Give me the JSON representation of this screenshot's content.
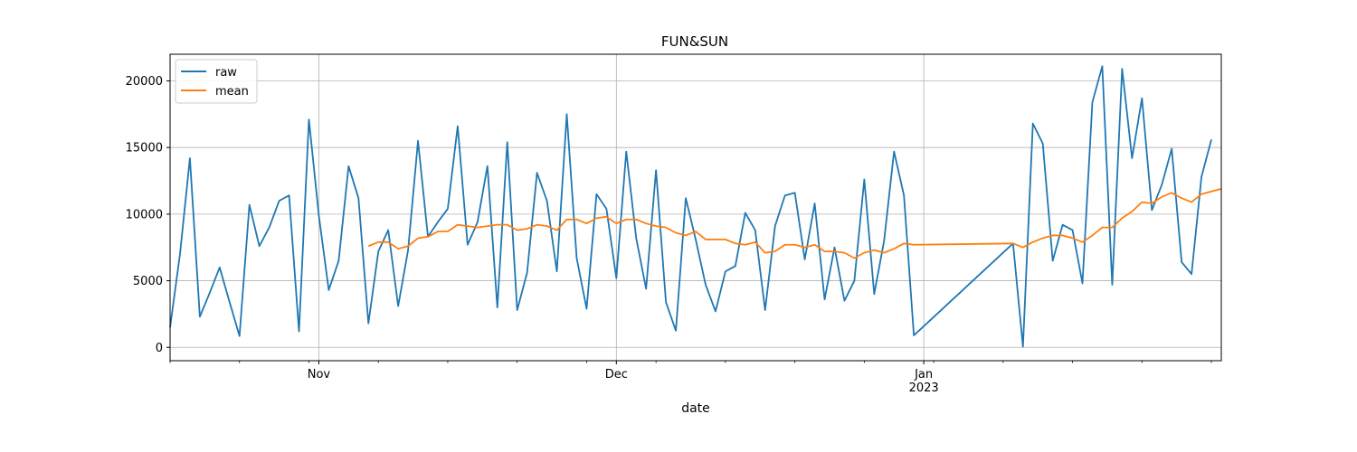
{
  "chart_data": {
    "type": "line",
    "title": "FUN&SUN",
    "xlabel": "date",
    "ylabel": "",
    "x_range": [
      "2022-10-17",
      "2023-01-31"
    ],
    "ylim": [
      -1000,
      22000
    ],
    "y_ticks": [
      0,
      5000,
      10000,
      15000,
      20000
    ],
    "y_tick_labels": [
      "0",
      "5000",
      "10000",
      "15000",
      "20000"
    ],
    "x_major_ticks": [
      {
        "date": "2022-11-01",
        "label": "Nov"
      },
      {
        "date": "2022-12-01",
        "label": "Dec"
      },
      {
        "date": "2023-01-01",
        "label": "Jan\n2023"
      }
    ],
    "grid": true,
    "legend_placement": "upper-left",
    "series": [
      {
        "name": "raw",
        "color": "#1f77b4",
        "points": [
          [
            "2022-10-17",
            1500
          ],
          [
            "2022-10-18",
            7000
          ],
          [
            "2022-10-19",
            14200
          ],
          [
            "2022-10-20",
            2300
          ],
          [
            "2022-10-21",
            4100
          ],
          [
            "2022-10-22",
            6000
          ],
          [
            "2022-10-23",
            3400
          ],
          [
            "2022-10-24",
            850
          ],
          [
            "2022-10-25",
            10700
          ],
          [
            "2022-10-26",
            7600
          ],
          [
            "2022-10-27",
            9000
          ],
          [
            "2022-10-28",
            11000
          ],
          [
            "2022-10-29",
            11400
          ],
          [
            "2022-10-30",
            1200
          ],
          [
            "2022-10-31",
            17100
          ],
          [
            "2022-11-01",
            9900
          ],
          [
            "2022-11-02",
            4300
          ],
          [
            "2022-11-03",
            6500
          ],
          [
            "2022-11-04",
            13600
          ],
          [
            "2022-11-05",
            11200
          ],
          [
            "2022-11-06",
            1800
          ],
          [
            "2022-11-07",
            7200
          ],
          [
            "2022-11-08",
            8800
          ],
          [
            "2022-11-09",
            3100
          ],
          [
            "2022-11-10",
            7300
          ],
          [
            "2022-11-11",
            15500
          ],
          [
            "2022-11-12",
            8300
          ],
          [
            "2022-11-13",
            9400
          ],
          [
            "2022-11-14",
            10400
          ],
          [
            "2022-11-15",
            16600
          ],
          [
            "2022-11-16",
            7700
          ],
          [
            "2022-11-17",
            9400
          ],
          [
            "2022-11-18",
            13600
          ],
          [
            "2022-11-19",
            3000
          ],
          [
            "2022-11-20",
            15400
          ],
          [
            "2022-11-21",
            2800
          ],
          [
            "2022-11-22",
            5600
          ],
          [
            "2022-11-23",
            13100
          ],
          [
            "2022-11-24",
            11000
          ],
          [
            "2022-11-25",
            5700
          ],
          [
            "2022-11-26",
            17500
          ],
          [
            "2022-11-27",
            6700
          ],
          [
            "2022-11-28",
            2900
          ],
          [
            "2022-11-29",
            11500
          ],
          [
            "2022-11-30",
            10400
          ],
          [
            "2022-12-01",
            5200
          ],
          [
            "2022-12-02",
            14700
          ],
          [
            "2022-12-03",
            8200
          ],
          [
            "2022-12-04",
            4400
          ],
          [
            "2022-12-05",
            13300
          ],
          [
            "2022-12-06",
            3400
          ],
          [
            "2022-12-07",
            1250
          ],
          [
            "2022-12-08",
            11200
          ],
          [
            "2022-12-09",
            8100
          ],
          [
            "2022-12-10",
            4700
          ],
          [
            "2022-12-11",
            2700
          ],
          [
            "2022-12-12",
            5700
          ],
          [
            "2022-12-13",
            6100
          ],
          [
            "2022-12-14",
            10100
          ],
          [
            "2022-12-15",
            8800
          ],
          [
            "2022-12-16",
            2800
          ],
          [
            "2022-12-17",
            9100
          ],
          [
            "2022-12-18",
            11400
          ],
          [
            "2022-12-19",
            11600
          ],
          [
            "2022-12-20",
            6600
          ],
          [
            "2022-12-21",
            10800
          ],
          [
            "2022-12-22",
            3600
          ],
          [
            "2022-12-23",
            7500
          ],
          [
            "2022-12-24",
            3500
          ],
          [
            "2022-12-25",
            5000
          ],
          [
            "2022-12-26",
            12600
          ],
          [
            "2022-12-27",
            4000
          ],
          [
            "2022-12-28",
            8000
          ],
          [
            "2022-12-29",
            14700
          ],
          [
            "2022-12-30",
            11400
          ],
          [
            "2022-12-31",
            900
          ],
          [
            "2023-01-10",
            7800
          ],
          [
            "2023-01-11",
            50
          ],
          [
            "2023-01-12",
            16800
          ],
          [
            "2023-01-13",
            15300
          ],
          [
            "2023-01-14",
            6500
          ],
          [
            "2023-01-15",
            9200
          ],
          [
            "2023-01-16",
            8800
          ],
          [
            "2023-01-17",
            4800
          ],
          [
            "2023-01-18",
            18400
          ],
          [
            "2023-01-19",
            21100
          ],
          [
            "2023-01-20",
            4700
          ],
          [
            "2023-01-21",
            20900
          ],
          [
            "2023-01-22",
            14200
          ],
          [
            "2023-01-23",
            18700
          ],
          [
            "2023-01-24",
            10300
          ],
          [
            "2023-01-25",
            12200
          ],
          [
            "2023-01-26",
            14900
          ],
          [
            "2023-01-27",
            6400
          ],
          [
            "2023-01-28",
            5500
          ],
          [
            "2023-01-29",
            12800
          ],
          [
            "2023-01-30",
            15600
          ]
        ]
      },
      {
        "name": "mean",
        "color": "#ff7f0e",
        "points": [
          [
            "2022-11-06",
            7600
          ],
          [
            "2022-11-07",
            7900
          ],
          [
            "2022-11-08",
            7900
          ],
          [
            "2022-11-09",
            7400
          ],
          [
            "2022-11-10",
            7600
          ],
          [
            "2022-11-11",
            8200
          ],
          [
            "2022-11-12",
            8300
          ],
          [
            "2022-11-13",
            8700
          ],
          [
            "2022-11-14",
            8700
          ],
          [
            "2022-11-15",
            9200
          ],
          [
            "2022-11-16",
            9100
          ],
          [
            "2022-11-17",
            9000
          ],
          [
            "2022-11-18",
            9100
          ],
          [
            "2022-11-19",
            9200
          ],
          [
            "2022-11-20",
            9200
          ],
          [
            "2022-11-21",
            8800
          ],
          [
            "2022-11-22",
            8900
          ],
          [
            "2022-11-23",
            9200
          ],
          [
            "2022-11-24",
            9100
          ],
          [
            "2022-11-25",
            8800
          ],
          [
            "2022-11-26",
            9600
          ],
          [
            "2022-11-27",
            9600
          ],
          [
            "2022-11-28",
            9300
          ],
          [
            "2022-11-29",
            9700
          ],
          [
            "2022-11-30",
            9800
          ],
          [
            "2022-12-01",
            9300
          ],
          [
            "2022-12-02",
            9600
          ],
          [
            "2022-12-03",
            9600
          ],
          [
            "2022-12-04",
            9300
          ],
          [
            "2022-12-05",
            9100
          ],
          [
            "2022-12-06",
            9000
          ],
          [
            "2022-12-07",
            8600
          ],
          [
            "2022-12-08",
            8400
          ],
          [
            "2022-12-09",
            8700
          ],
          [
            "2022-12-10",
            8100
          ],
          [
            "2022-12-11",
            8100
          ],
          [
            "2022-12-12",
            8100
          ],
          [
            "2022-12-13",
            7800
          ],
          [
            "2022-12-14",
            7700
          ],
          [
            "2022-12-15",
            7900
          ],
          [
            "2022-12-16",
            7100
          ],
          [
            "2022-12-17",
            7200
          ],
          [
            "2022-12-18",
            7700
          ],
          [
            "2022-12-19",
            7700
          ],
          [
            "2022-12-20",
            7500
          ],
          [
            "2022-12-21",
            7700
          ],
          [
            "2022-12-22",
            7200
          ],
          [
            "2022-12-23",
            7200
          ],
          [
            "2022-12-24",
            7100
          ],
          [
            "2022-12-25",
            6700
          ],
          [
            "2022-12-26",
            7100
          ],
          [
            "2022-12-27",
            7300
          ],
          [
            "2022-12-28",
            7100
          ],
          [
            "2022-12-29",
            7400
          ],
          [
            "2022-12-30",
            7800
          ],
          [
            "2022-12-31",
            7700
          ],
          [
            "2023-01-10",
            7800
          ],
          [
            "2023-01-11",
            7500
          ],
          [
            "2023-01-12",
            7900
          ],
          [
            "2023-01-13",
            8200
          ],
          [
            "2023-01-14",
            8400
          ],
          [
            "2023-01-15",
            8400
          ],
          [
            "2023-01-16",
            8200
          ],
          [
            "2023-01-17",
            7900
          ],
          [
            "2023-01-18",
            8400
          ],
          [
            "2023-01-19",
            9000
          ],
          [
            "2023-01-20",
            9000
          ],
          [
            "2023-01-21",
            9700
          ],
          [
            "2023-01-22",
            10200
          ],
          [
            "2023-01-23",
            10900
          ],
          [
            "2023-01-24",
            10800
          ],
          [
            "2023-01-25",
            11300
          ],
          [
            "2023-01-26",
            11600
          ],
          [
            "2023-01-27",
            11200
          ],
          [
            "2023-01-28",
            10900
          ],
          [
            "2023-01-29",
            11500
          ],
          [
            "2023-01-31",
            11900
          ]
        ]
      }
    ]
  }
}
